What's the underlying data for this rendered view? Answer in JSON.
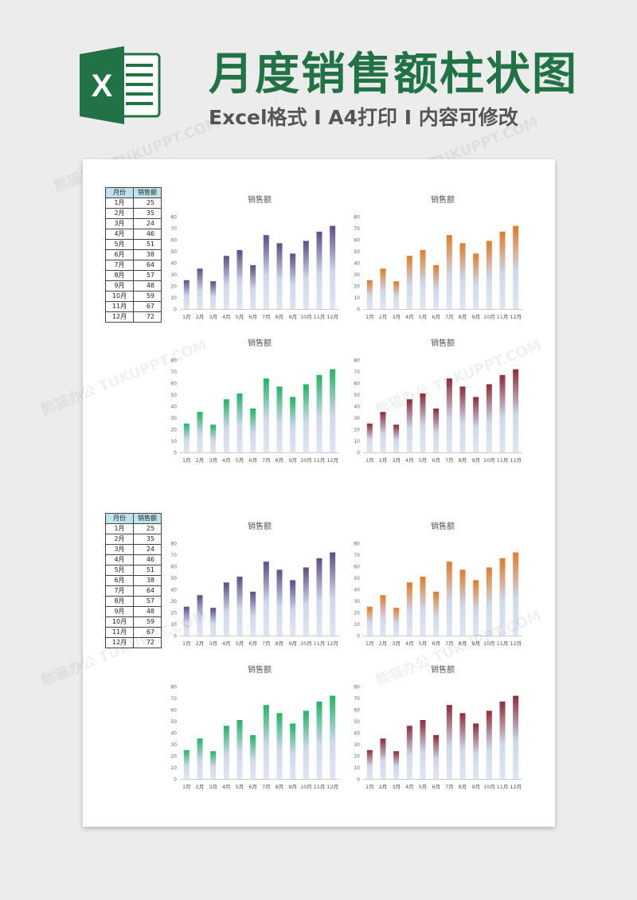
{
  "header": {
    "title": "月度销售额柱状图",
    "subtitle": "Excel格式 I A4打印 I 内容可修改",
    "logo_letter": "X",
    "logo_color": "#217346"
  },
  "watermark": "熊猫办公 TUKUPPT.COM",
  "tables": [
    {
      "headers": [
        "月份",
        "销售额"
      ],
      "rows": [
        [
          "1月",
          25
        ],
        [
          "2月",
          35
        ],
        [
          "3月",
          24
        ],
        [
          "4月",
          46
        ],
        [
          "5月",
          51
        ],
        [
          "6月",
          38
        ],
        [
          "7月",
          64
        ],
        [
          "8月",
          57
        ],
        [
          "9月",
          48
        ],
        [
          "10月",
          59
        ],
        [
          "11月",
          67
        ],
        [
          "12月",
          72
        ]
      ]
    },
    {
      "headers": [
        "月份",
        "销售额"
      ],
      "rows": [
        [
          "1月",
          25
        ],
        [
          "2月",
          35
        ],
        [
          "3月",
          24
        ],
        [
          "4月",
          46
        ],
        [
          "5月",
          51
        ],
        [
          "6月",
          38
        ],
        [
          "7月",
          64
        ],
        [
          "8月",
          57
        ],
        [
          "9月",
          48
        ],
        [
          "10月",
          59
        ],
        [
          "11月",
          67
        ],
        [
          "12月",
          72
        ]
      ]
    }
  ],
  "chart_data": [
    {
      "type": "bar",
      "title": "销售额",
      "categories": [
        "1月",
        "2月",
        "3月",
        "4月",
        "5月",
        "6月",
        "7月",
        "8月",
        "9月",
        "10月",
        "11月",
        "12月"
      ],
      "values": [
        25,
        35,
        24,
        46,
        51,
        38,
        64,
        57,
        48,
        59,
        67,
        72
      ],
      "ylim": [
        0,
        80
      ],
      "yticks": [
        0,
        10,
        20,
        30,
        40,
        50,
        60,
        70,
        80
      ],
      "color": "#5d4c85"
    },
    {
      "type": "bar",
      "title": "销售额",
      "categories": [
        "1月",
        "2月",
        "3月",
        "4月",
        "5月",
        "6月",
        "7月",
        "8月",
        "9月",
        "10月",
        "11月",
        "12月"
      ],
      "values": [
        25,
        35,
        24,
        46,
        51,
        38,
        64,
        57,
        48,
        59,
        67,
        72
      ],
      "ylim": [
        0,
        80
      ],
      "yticks": [
        0,
        10,
        20,
        30,
        40,
        50,
        60,
        70,
        80
      ],
      "color": "#e07b29"
    },
    {
      "type": "bar",
      "title": "销售额",
      "categories": [
        "1月",
        "2月",
        "3月",
        "4月",
        "5月",
        "6月",
        "7月",
        "8月",
        "9月",
        "10月",
        "11月",
        "12月"
      ],
      "values": [
        25,
        35,
        24,
        46,
        51,
        38,
        64,
        57,
        48,
        59,
        67,
        72
      ],
      "ylim": [
        0,
        80
      ],
      "yticks": [
        0,
        10,
        20,
        30,
        40,
        50,
        60,
        70,
        80
      ],
      "color": "#22b363"
    },
    {
      "type": "bar",
      "title": "销售额",
      "categories": [
        "1月",
        "2月",
        "3月",
        "4月",
        "5月",
        "6月",
        "7月",
        "8月",
        "9月",
        "10月",
        "11月",
        "12月"
      ],
      "values": [
        25,
        35,
        24,
        46,
        51,
        38,
        64,
        57,
        48,
        59,
        67,
        72
      ],
      "ylim": [
        0,
        80
      ],
      "yticks": [
        0,
        10,
        20,
        30,
        40,
        50,
        60,
        70,
        80
      ],
      "color": "#8e2c38"
    },
    {
      "type": "bar",
      "title": "销售额",
      "categories": [
        "1月",
        "2月",
        "3月",
        "4月",
        "5月",
        "6月",
        "7月",
        "8月",
        "9月",
        "10月",
        "11月",
        "12月"
      ],
      "values": [
        25,
        35,
        24,
        46,
        51,
        38,
        64,
        57,
        48,
        59,
        67,
        72
      ],
      "ylim": [
        0,
        80
      ],
      "yticks": [
        0,
        10,
        20,
        30,
        40,
        50,
        60,
        70,
        80
      ],
      "color": "#5d4c85"
    },
    {
      "type": "bar",
      "title": "销售额",
      "categories": [
        "1月",
        "2月",
        "3月",
        "4月",
        "5月",
        "6月",
        "7月",
        "8月",
        "9月",
        "10月",
        "11月",
        "12月"
      ],
      "values": [
        25,
        35,
        24,
        46,
        51,
        38,
        64,
        57,
        48,
        59,
        67,
        72
      ],
      "ylim": [
        0,
        80
      ],
      "yticks": [
        0,
        10,
        20,
        30,
        40,
        50,
        60,
        70,
        80
      ],
      "color": "#e07b29"
    },
    {
      "type": "bar",
      "title": "销售额",
      "categories": [
        "1月",
        "2月",
        "3月",
        "4月",
        "5月",
        "6月",
        "7月",
        "8月",
        "9月",
        "10月",
        "11月",
        "12月"
      ],
      "values": [
        25,
        35,
        24,
        46,
        51,
        38,
        64,
        57,
        48,
        59,
        67,
        72
      ],
      "ylim": [
        0,
        80
      ],
      "yticks": [
        0,
        10,
        20,
        30,
        40,
        50,
        60,
        70,
        80
      ],
      "color": "#22b363"
    },
    {
      "type": "bar",
      "title": "销售额",
      "categories": [
        "1月",
        "2月",
        "3月",
        "4月",
        "5月",
        "6月",
        "7月",
        "8月",
        "9月",
        "10月",
        "11月",
        "12月"
      ],
      "values": [
        25,
        35,
        24,
        46,
        51,
        38,
        64,
        57,
        48,
        59,
        67,
        72
      ],
      "ylim": [
        0,
        80
      ],
      "yticks": [
        0,
        10,
        20,
        30,
        40,
        50,
        60,
        70,
        80
      ],
      "color": "#8e2c38"
    }
  ]
}
